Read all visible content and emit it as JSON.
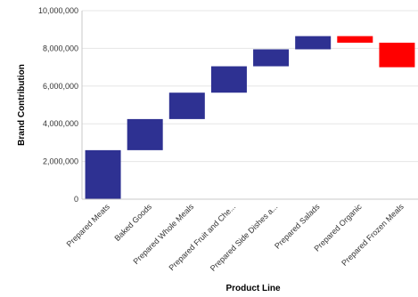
{
  "chart_data": {
    "type": "waterfall",
    "xlabel": "Product Line",
    "ylabel": "Brand Contribution",
    "ylim": [
      0,
      10000000
    ],
    "yticks": [
      0,
      2000000,
      4000000,
      6000000,
      8000000,
      10000000
    ],
    "ytick_labels": [
      "0",
      "2,000,000",
      "4,000,000",
      "6,000,000",
      "8,000,000",
      "10,000,000"
    ],
    "grid": true,
    "categories": [
      "Prepared Meats",
      "Baked Goods",
      "Prepared Whole Meals",
      "Prepared Fruit and Che...",
      "Prepared Side Dishes a...",
      "Prepared Salads",
      "Prepared Organic",
      "Prepared Frozen Meals"
    ],
    "values": [
      2600000,
      1650000,
      1400000,
      1400000,
      900000,
      700000,
      -350000,
      -1300000
    ],
    "colors": {
      "increase": "#2e3192",
      "decrease": "#ff0000"
    }
  }
}
